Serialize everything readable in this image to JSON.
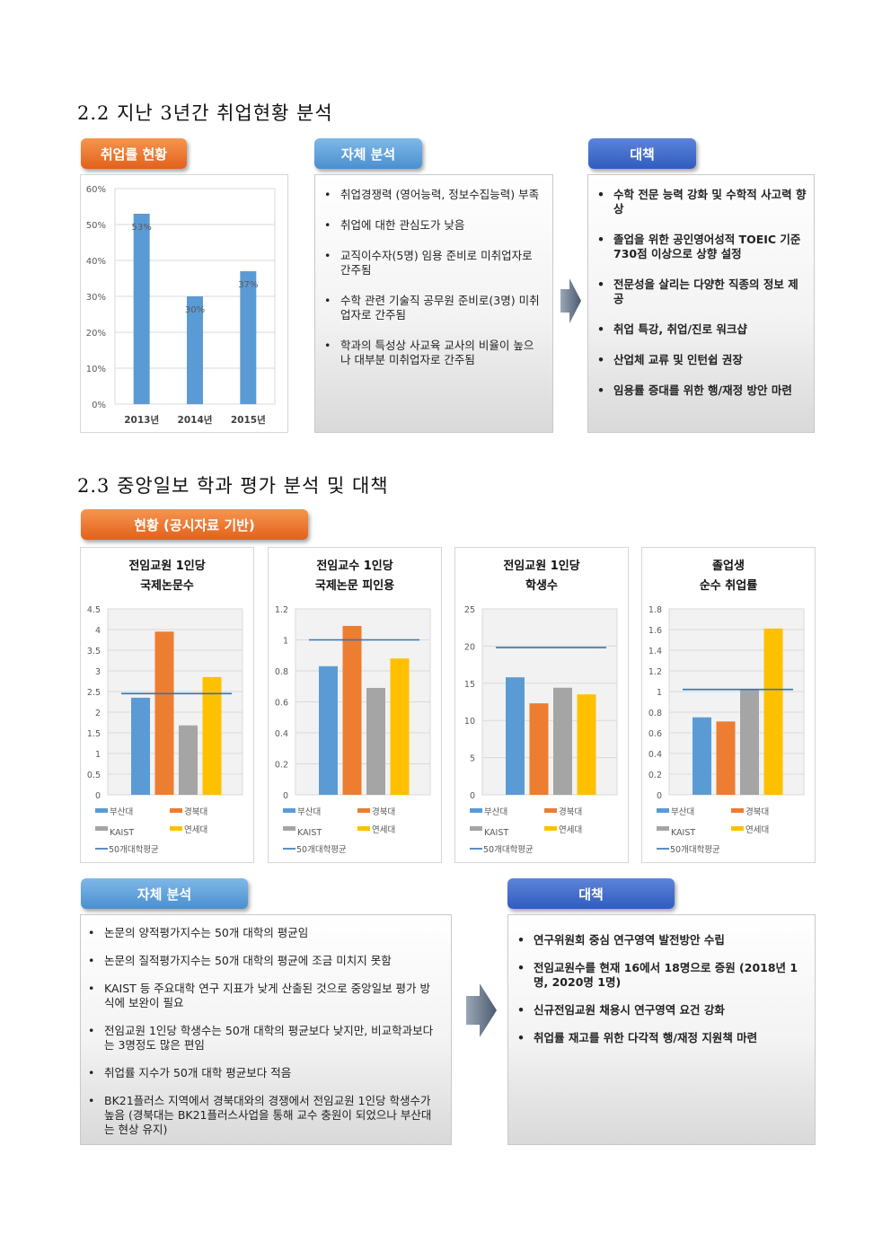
{
  "section22": {
    "heading": "2.2 지난 3년간 취업현황 분석",
    "tag_rate": "취업률 현황",
    "tag_analysis": "자체 분석",
    "tag_measures": "대책",
    "analysis_items": [
      "취업경쟁력 (영어능력, 정보수집능력) 부족",
      "취업에 대한 관심도가 낮음",
      "교직이수자(5명) 임용 준비로 미취업자로 간주됨",
      "수학 관련 기술직 공무원 준비로(3명) 미취업자로 간주됨",
      "학과의 특성상 사교육 교사의 비율이 높으나 대부분 미취업자로 간주됨"
    ],
    "measure_items": [
      "수학 전문 능력 강화 및 수학적 사고력 향상",
      "졸업을 위한 공인영어성적 TOEIC 기준 730점 이상으로 상향 설정",
      "전문성을 살리는 다양한 직종의 정보 제공",
      "취업 특강, 취업/진로 워크샵",
      "산업체 교류 및 인턴쉽 권장",
      "임용률 증대를 위한 행/재정 방안 마련"
    ]
  },
  "section23": {
    "heading": "2.3 중앙일보 학과 평가 분석 및 대책",
    "tag_status": "현황 (공시자료 기반)",
    "tag_analysis": "자체 분석",
    "tag_measures": "대책",
    "analysis_items": [
      "논문의 양적평가지수는 50개 대학의 평균임",
      "논문의 질적평가지수는 50개 대학의 평균에 조금 미치지 못함",
      "KAIST 등 주요대학 연구 지표가 낮게 산출된 것으로 중앙일보 평가 방식에 보완이 필요",
      "전임교원 1인당 학생수는 50개 대학의 평균보다 낮지만, 비교학과보다는 3명정도 많은 편임",
      "취업률 지수가 50개 대학 평균보다 적음",
      " BK21플러스 지역에서 경북대와의 경쟁에서 전임교원 1인당 학생수가 높음 (경북대는 BK21플러스사업을 통해 교수 충원이 되었으나 부산대는 현상 유지)"
    ],
    "measure_items": [
      "연구위원회 중심 연구영역 발전방안 수립",
      "전임교원수를 현재 16에서 18명으로 증원 (2018년 1명, 2020명 1명)",
      "신규전임교원 채용시 연구영역 요건 강화",
      "취업률 재고를 위한 다각적 행/재정 지원책 마련"
    ]
  },
  "bullet": "•",
  "colors": {
    "busan": "#5b9bd5",
    "kyungpook": "#ed7d31",
    "kaist": "#a5a5a5",
    "yonsei": "#ffc000",
    "avg": "#2e75b6"
  },
  "chart_data": [
    {
      "type": "bar",
      "title": "",
      "categories": [
        "2013년",
        "2014년",
        "2015년"
      ],
      "values": [
        53,
        30,
        37
      ],
      "data_labels": [
        "53%",
        "30%",
        "37%"
      ],
      "ylim": [
        0,
        60
      ],
      "yticks": [
        "0%",
        "10%",
        "20%",
        "30%",
        "40%",
        "50%",
        "60%"
      ],
      "grid": true
    },
    {
      "type": "bar",
      "title_lines": [
        "전임교원 1인당",
        "국제논문수"
      ],
      "series": [
        {
          "name": "부산대",
          "values": [
            2.35
          ]
        },
        {
          "name": "경북대",
          "values": [
            3.95
          ]
        },
        {
          "name": "KAIST",
          "values": [
            1.68
          ]
        },
        {
          "name": "연세대",
          "values": [
            2.85
          ]
        }
      ],
      "avg_line": {
        "name": "50개대학평균",
        "value": 2.45
      },
      "ylim": [
        0,
        4.5
      ],
      "yticks": [
        "0",
        "0.5",
        "1",
        "1.5",
        "2",
        "2.5",
        "3",
        "3.5",
        "4",
        "4.5"
      ],
      "legend": "bottom",
      "grid": true
    },
    {
      "type": "bar",
      "title_lines": [
        "전임교수 1인당",
        "국제논문 피인용"
      ],
      "series": [
        {
          "name": "부산대",
          "values": [
            0.83
          ]
        },
        {
          "name": "경북대",
          "values": [
            1.09
          ]
        },
        {
          "name": "KAIST",
          "values": [
            0.69
          ]
        },
        {
          "name": "연세대",
          "values": [
            0.88
          ]
        }
      ],
      "avg_line": {
        "name": "50개대학평균",
        "value": 1.0
      },
      "ylim": [
        0,
        1.2
      ],
      "yticks": [
        "0",
        "0.2",
        "0.4",
        "0.6",
        "0.8",
        "1",
        "1.2"
      ],
      "legend": "bottom",
      "grid": true
    },
    {
      "type": "bar",
      "title_lines": [
        "전임교원 1인당",
        "학생수"
      ],
      "series": [
        {
          "name": "부산대",
          "values": [
            15.8
          ]
        },
        {
          "name": "경북대",
          "values": [
            12.3
          ]
        },
        {
          "name": "KAIST",
          "values": [
            14.4
          ]
        },
        {
          "name": "연세대",
          "values": [
            13.5
          ]
        }
      ],
      "avg_line": {
        "name": "50개대학평균",
        "value": 19.8
      },
      "ylim": [
        0,
        25
      ],
      "yticks": [
        "0",
        "5",
        "10",
        "15",
        "20",
        "25"
      ],
      "legend": "bottom",
      "grid": true
    },
    {
      "type": "bar",
      "title_lines": [
        "졸업생",
        "순수 취업률"
      ],
      "series": [
        {
          "name": "부산대",
          "values": [
            0.75
          ]
        },
        {
          "name": "경북대",
          "values": [
            0.71
          ]
        },
        {
          "name": "KAIST",
          "values": [
            1.02
          ]
        },
        {
          "name": "연세대",
          "values": [
            1.61
          ]
        }
      ],
      "avg_line": {
        "name": "50개대학평균",
        "value": 1.02
      },
      "ylim": [
        0,
        1.8
      ],
      "yticks": [
        "0",
        "0.2",
        "0.4",
        "0.6",
        "0.8",
        "1",
        "1.2",
        "1.4",
        "1.6",
        "1.8"
      ],
      "legend": "bottom",
      "grid": true
    }
  ]
}
